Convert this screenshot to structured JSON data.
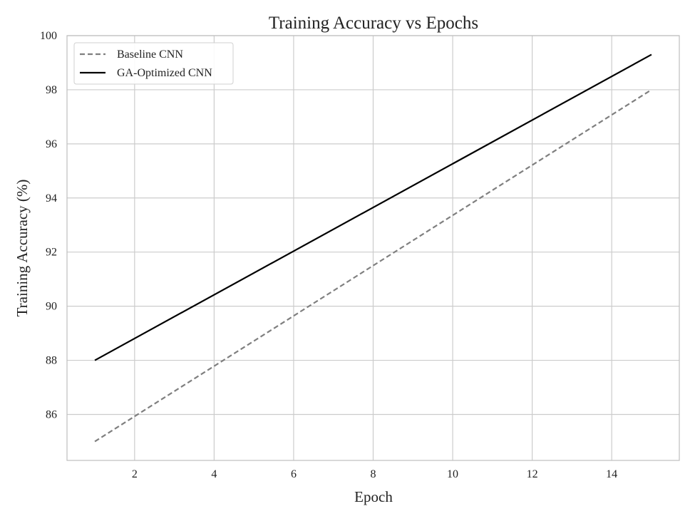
{
  "chart_data": {
    "type": "line",
    "title": "Training Accuracy vs Epochs",
    "xlabel": "Epoch",
    "ylabel": "Training Accuracy (%)",
    "xlim": [
      0.3,
      15.7
    ],
    "ylim": [
      84.3,
      100
    ],
    "xticks": [
      2,
      4,
      6,
      8,
      10,
      12,
      14
    ],
    "yticks": [
      86,
      88,
      90,
      92,
      94,
      96,
      98,
      100
    ],
    "grid": true,
    "legend_position": "top-left",
    "series": [
      {
        "name": "Baseline CNN",
        "color": "#7f7f7f",
        "style": "dashed",
        "x": [
          1,
          15
        ],
        "y": [
          85.0,
          98.0
        ]
      },
      {
        "name": "GA-Optimized CNN",
        "color": "#000000",
        "style": "solid",
        "x": [
          1,
          15
        ],
        "y": [
          88.0,
          99.3
        ]
      }
    ]
  }
}
